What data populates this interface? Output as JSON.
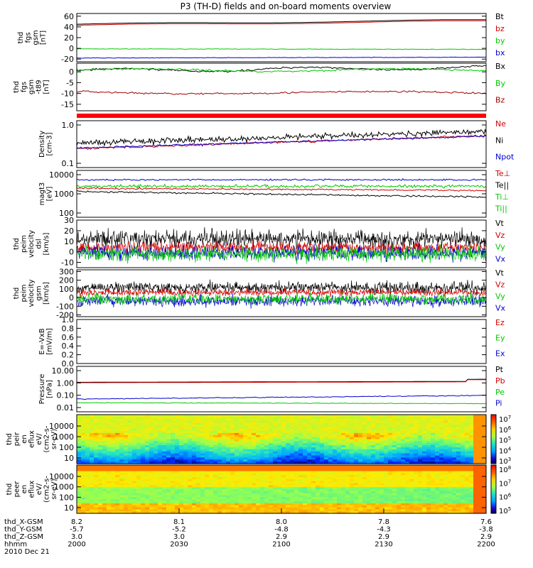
{
  "title": "P3 (TH-D) fields and on-board moments overview",
  "colors": {
    "black": "#000000",
    "red": "#d40000",
    "green": "#00c800",
    "blue": "#0000d0",
    "dkred": "#a00000"
  },
  "chart_data": [
    {
      "type": "line",
      "ylabel": [
        "thd",
        "fgs",
        "gsm",
        "[nT]"
      ],
      "ylim": [
        -25,
        65
      ],
      "yticks": [
        "60",
        "40",
        "20",
        "0",
        "-20"
      ],
      "series": [
        {
          "name": "Bt",
          "color": "#000000"
        },
        {
          "name": "bz",
          "color": "#d40000"
        },
        {
          "name": "by",
          "color": "#00c800"
        },
        {
          "name": "bx",
          "color": "#0000d0"
        }
      ]
    },
    {
      "type": "line",
      "ylabel": [
        "thd",
        "fgs",
        "gsm",
        "-t89",
        "[nT]"
      ],
      "ylim": [
        -18,
        4
      ],
      "yticks": [
        "0",
        "-5",
        "-10",
        "-15"
      ],
      "series": [
        {
          "name": "Bx",
          "color": "#000000"
        },
        {
          "name": "By",
          "color": "#00c800"
        },
        {
          "name": "Bz",
          "color": "#a00000"
        }
      ]
    },
    {
      "type": "line",
      "ylabel": [
        "Density",
        "[cm-3]"
      ],
      "scale": "log",
      "yticks": [
        "1.0",
        "0.1"
      ],
      "series": [
        {
          "name": "Ne",
          "color": "#d40000"
        },
        {
          "name": "Ni",
          "color": "#000000"
        },
        {
          "name": "Npot",
          "color": "#0000d0"
        }
      ]
    },
    {
      "type": "line",
      "ylabel": [
        "magt3",
        "[eV]"
      ],
      "scale": "log",
      "yticks": [
        "10000",
        "1000",
        "100"
      ],
      "series": [
        {
          "name": "Te⊥",
          "color": "#d40000"
        },
        {
          "name": "Te||",
          "color": "#000000"
        },
        {
          "name": "Ti⊥",
          "color": "#00c800"
        },
        {
          "name": "Ti||",
          "color": "#00c800"
        }
      ]
    },
    {
      "type": "line",
      "ylabel": [
        "thd",
        "peim",
        "velocity",
        "dsl",
        "[km/s]"
      ],
      "ylim": [
        -15,
        30
      ],
      "yticks": [
        "30",
        "20",
        "10",
        "0",
        "-10"
      ],
      "series": [
        {
          "name": "Vt",
          "color": "#000000"
        },
        {
          "name": "Vz",
          "color": "#d40000"
        },
        {
          "name": "Vy",
          "color": "#00c800"
        },
        {
          "name": "Vx",
          "color": "#0000d0"
        }
      ]
    },
    {
      "type": "line",
      "ylabel": [
        "thd",
        "peim",
        "velocity",
        "gsm",
        "[km/s]"
      ],
      "ylim": [
        -220,
        320
      ],
      "yticks": [
        "300",
        "200",
        "100",
        "0",
        "-100",
        "-200"
      ],
      "series": [
        {
          "name": "Vt",
          "color": "#000000"
        },
        {
          "name": "Vz",
          "color": "#d40000"
        },
        {
          "name": "Vy",
          "color": "#00c800"
        },
        {
          "name": "Vx",
          "color": "#0000d0"
        }
      ]
    },
    {
      "type": "line",
      "ylabel": [
        "E=-VxB",
        "[mV/m]"
      ],
      "ylim": [
        0,
        1
      ],
      "yticks": [
        "1.0",
        "0.8",
        "0.6",
        "0.4",
        "0.2",
        "0.0"
      ],
      "series": [
        {
          "name": "Ez",
          "color": "#d40000"
        },
        {
          "name": "Ey",
          "color": "#00c800"
        },
        {
          "name": "Ex",
          "color": "#0000d0"
        }
      ]
    },
    {
      "type": "line",
      "ylabel": [
        "Pressure",
        "[nPa]"
      ],
      "scale": "log",
      "yticks": [
        "10.00",
        "1.00",
        "0.10",
        "0.01"
      ],
      "series": [
        {
          "name": "Pt",
          "color": "#000000"
        },
        {
          "name": "Pb",
          "color": "#d40000"
        },
        {
          "name": "Pe",
          "color": "#00c800"
        },
        {
          "name": "Pi",
          "color": "#0000d0"
        }
      ]
    },
    {
      "type": "heatmap",
      "ylabel": [
        "thd",
        "peir",
        "en",
        "eflux",
        "eV/",
        "(cm2-s-",
        "sr-eV)"
      ],
      "yticks": [
        "10000",
        "1000",
        "100",
        "10"
      ],
      "colorbar": [
        "10^7",
        "10^6",
        "10^5",
        "10^4",
        "10^3"
      ]
    },
    {
      "type": "heatmap",
      "ylabel": [
        "thd",
        "peer",
        "en",
        "eflux",
        "eV/",
        "(cm2-s-",
        "sr-eV)"
      ],
      "yticks": [
        "10000",
        "1000",
        "100",
        "10"
      ],
      "colorbar": [
        "10^8",
        "10^7",
        "10^6",
        "10^5"
      ]
    }
  ],
  "xaxis": {
    "labels": [
      "thd_X-GSM",
      "thd_Y-GSM",
      "thd_Z-GSM",
      "hhmm",
      "2010 Dec 21"
    ],
    "rows": [
      [
        "8.2",
        "8.1",
        "8.0",
        "7.8",
        "7.6"
      ],
      [
        "-5.7",
        "-5.2",
        "-4.8",
        "-4.3",
        "-3.8"
      ],
      [
        "3.0",
        "3.0",
        "2.9",
        "2.9",
        "2.9"
      ],
      [
        "2000",
        "2030",
        "2100",
        "2130",
        "2200"
      ]
    ]
  }
}
